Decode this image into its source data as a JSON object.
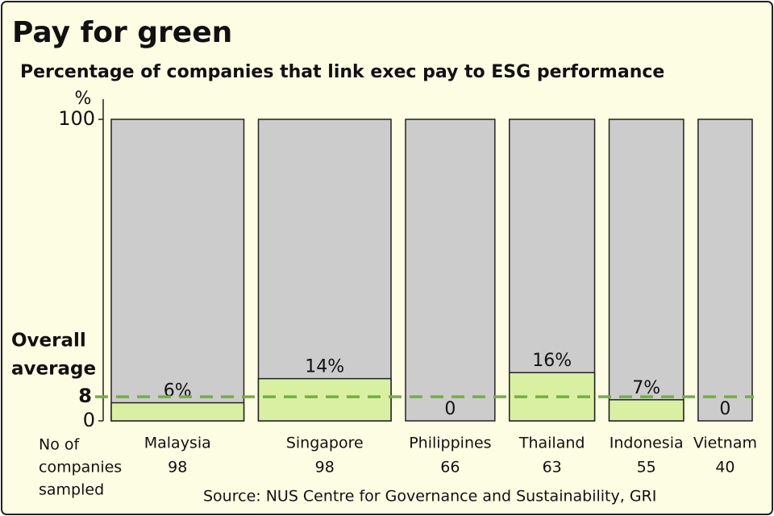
{
  "chart_data": {
    "type": "mekko",
    "title": "Pay for green",
    "subtitle": "Percentage of companies that link exec pay to ESG performance",
    "y_label": "%",
    "categories": [
      "Malaysia",
      "Singapore",
      "Philippines",
      "Thailand",
      "Indonesia",
      "Vietnam"
    ],
    "values": [
      6,
      14,
      0,
      16,
      7,
      0
    ],
    "value_labels": [
      "6%",
      "14%",
      "0",
      "16%",
      "7%",
      "0"
    ],
    "sample_sizes": [
      98,
      98,
      66,
      63,
      55,
      40
    ],
    "sample_label": [
      "No of",
      "companies",
      "sampled"
    ],
    "average": 8,
    "average_label": [
      "Overall",
      "average"
    ],
    "color": "#d9f0a3",
    "background_color": "#cccccc",
    "average_color": "#6db33f",
    "ylim": [
      0,
      100
    ],
    "yticks": [
      0,
      100
    ],
    "source": "Source: NUS Centre for Governance and Sustainability, GRI"
  }
}
